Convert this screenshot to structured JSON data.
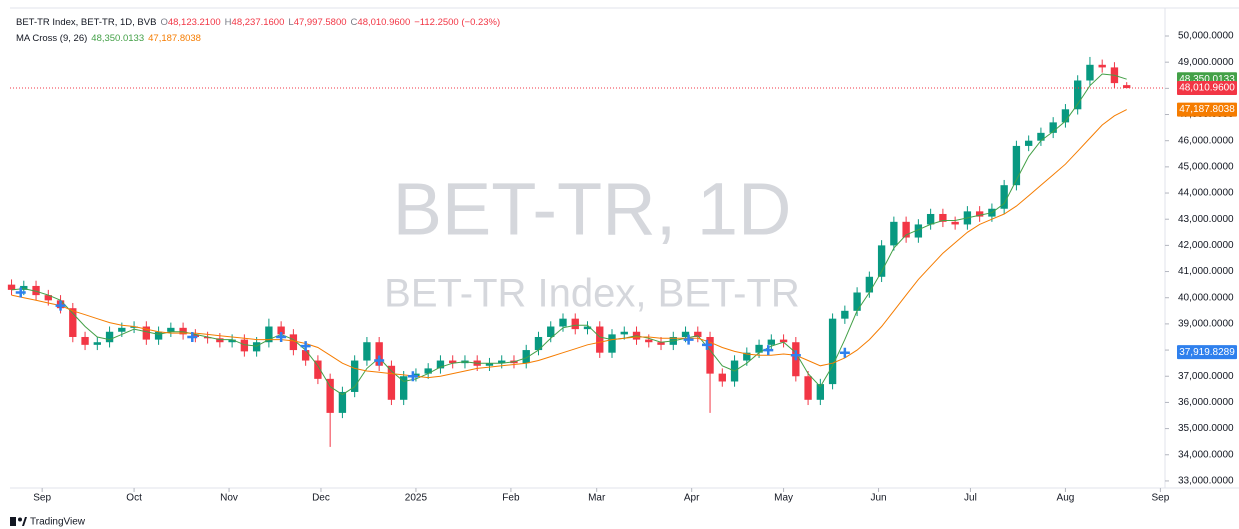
{
  "chart_data": {
    "type": "candlestick",
    "header": {
      "symbol": "BET-TR Index, BET-TR, 1D, BVB",
      "open_key": "O",
      "open": "48,123.2100",
      "high_key": "H",
      "high": "48,237.1600",
      "low_key": "L",
      "low": "47,997.5800",
      "close_key": "C",
      "close": "48,010.9600",
      "change": "−112.2500 (−0.23%)"
    },
    "indicator": "MA Cross (9, 26)",
    "watermark": [
      "BET-TR, 1D",
      "BET-TR Index, BET-TR"
    ],
    "footer": "TradingView",
    "up_color": "#089981",
    "down_color": "#f23645",
    "xlim": [
      -0.5,
      376.5
    ],
    "xticks": [
      {
        "value": 10,
        "label": "Sep"
      },
      {
        "value": 40,
        "label": "Oct"
      },
      {
        "value": 71,
        "label": "Nov"
      },
      {
        "value": 101,
        "label": "Dec"
      },
      {
        "value": 132,
        "label": "2025"
      },
      {
        "value": 163,
        "label": "Feb"
      },
      {
        "value": 191,
        "label": "Mar"
      },
      {
        "value": 222,
        "label": "Apr"
      },
      {
        "value": 252,
        "label": "May"
      },
      {
        "value": 283,
        "label": "Jun"
      },
      {
        "value": 313,
        "label": "Jul"
      },
      {
        "value": 344,
        "label": "Aug"
      },
      {
        "value": 375,
        "label": "Sep"
      }
    ],
    "ylim": [
      32730,
      51070
    ],
    "yticks": [
      {
        "value": 33000,
        "label": "33,000.0000"
      },
      {
        "value": 34000,
        "label": "34,000.0000"
      },
      {
        "value": 35000,
        "label": "35,000.0000"
      },
      {
        "value": 36000,
        "label": "36,000.0000"
      },
      {
        "value": 37000,
        "label": "37,000.0000"
      },
      {
        "value": 38000,
        "label": "38,000.0000"
      },
      {
        "value": 39000,
        "label": "39,000.0000"
      },
      {
        "value": 40000,
        "label": "40,000.0000"
      },
      {
        "value": 41000,
        "label": "41,000.0000"
      },
      {
        "value": 42000,
        "label": "42,000.0000"
      },
      {
        "value": 43000,
        "label": "43,000.0000"
      },
      {
        "value": 44000,
        "label": "44,000.0000"
      },
      {
        "value": 45000,
        "label": "45,000.0000"
      },
      {
        "value": 46000,
        "label": "46,000.0000"
      },
      {
        "value": 47000,
        "label": "47,000.0000"
      },
      {
        "value": 48000,
        "label": "48,000.0000"
      },
      {
        "value": 49000,
        "label": "49,000.0000"
      },
      {
        "value": 50000,
        "label": "50,000.0000"
      }
    ],
    "grid": false,
    "x": [
      0,
      4,
      8,
      12,
      16,
      20,
      24,
      28,
      32,
      36,
      40,
      44,
      48,
      52,
      56,
      60,
      64,
      68,
      72,
      76,
      80,
      84,
      88,
      92,
      96,
      100,
      104,
      108,
      112,
      116,
      120,
      124,
      128,
      132,
      136,
      140,
      144,
      148,
      152,
      156,
      160,
      164,
      168,
      172,
      176,
      180,
      184,
      188,
      192,
      196,
      200,
      204,
      208,
      212,
      216,
      220,
      224,
      228,
      232,
      236,
      240,
      244,
      248,
      252,
      256,
      260,
      264,
      268,
      272,
      276,
      280,
      284,
      288,
      292,
      296,
      300,
      304,
      308,
      312,
      316,
      320,
      324,
      328,
      332,
      336,
      340,
      344,
      348,
      352,
      356,
      360,
      364
    ],
    "open": [
      40500,
      40300,
      40450,
      40100,
      39900,
      39600,
      38500,
      38200,
      38300,
      38700,
      38850,
      38900,
      38400,
      38700,
      38850,
      38600,
      38500,
      38450,
      38300,
      38400,
      37950,
      38300,
      38900,
      38600,
      38000,
      37600,
      36900,
      35600,
      36400,
      37600,
      38300,
      37400,
      36100,
      37000,
      37100,
      37300,
      37600,
      37500,
      37600,
      37400,
      37500,
      37600,
      37500,
      38000,
      38500,
      38900,
      39200,
      38800,
      38900,
      37900,
      38600,
      38700,
      38400,
      38300,
      38200,
      38500,
      38700,
      38500,
      37100,
      36800,
      37600,
      37900,
      38200,
      38400,
      38300,
      37000,
      36100,
      36700,
      39200,
      39500,
      40200,
      40800,
      42000,
      42900,
      42300,
      42800,
      43200,
      42900,
      42800,
      43300,
      43100,
      43400,
      44300,
      45800,
      46000,
      46300,
      46700,
      47200,
      48300,
      48900,
      48800,
      48123.21
    ],
    "high": [
      40700,
      40650,
      40650,
      40300,
      40100,
      39800,
      38700,
      38500,
      38900,
      39050,
      39100,
      39100,
      38900,
      39050,
      39050,
      38800,
      38700,
      38650,
      38600,
      38600,
      38500,
      39200,
      39100,
      38800,
      38200,
      37800,
      37100,
      36600,
      37800,
      38500,
      38500,
      37600,
      37200,
      37300,
      37500,
      37800,
      37800,
      37800,
      37800,
      37700,
      37800,
      37800,
      38200,
      38700,
      39100,
      39400,
      39400,
      39100,
      39100,
      38800,
      38900,
      38900,
      38600,
      38500,
      38700,
      38900,
      38900,
      38700,
      37300,
      37800,
      38100,
      38400,
      38600,
      38600,
      38500,
      37200,
      36900,
      39400,
      39700,
      40400,
      41000,
      42200,
      43100,
      43100,
      43000,
      43400,
      43400,
      43100,
      43500,
      43500,
      43600,
      44500,
      46000,
      46200,
      46500,
      46900,
      47400,
      48500,
      49200,
      49100,
      49000,
      48237.16
    ],
    "low": [
      40100,
      40100,
      39900,
      39700,
      39400,
      38300,
      38000,
      38000,
      38100,
      38500,
      38650,
      38200,
      38200,
      38500,
      38400,
      38300,
      38250,
      38100,
      38100,
      37750,
      37750,
      38100,
      38400,
      37800,
      37400,
      36700,
      34300,
      35400,
      36200,
      37400,
      37200,
      35900,
      35900,
      36800,
      36900,
      37100,
      37300,
      37300,
      37200,
      37200,
      37300,
      37300,
      37300,
      37800,
      38300,
      38700,
      38600,
      38600,
      37700,
      37700,
      38400,
      38200,
      38100,
      38000,
      38000,
      38300,
      38300,
      35600,
      36600,
      36600,
      37400,
      37700,
      38000,
      38100,
      36800,
      35900,
      35900,
      36500,
      39000,
      39300,
      40000,
      40600,
      41800,
      42100,
      42100,
      42600,
      42700,
      42600,
      42600,
      42900,
      42900,
      43200,
      44100,
      45600,
      45800,
      46100,
      46500,
      47000,
      48100,
      48600,
      48000,
      47997.58
    ],
    "close": [
      40300,
      40450,
      40100,
      39900,
      39600,
      38500,
      38200,
      38300,
      38700,
      38850,
      38900,
      38400,
      38700,
      38850,
      38600,
      38500,
      38450,
      38300,
      38400,
      37950,
      38300,
      38900,
      38600,
      38000,
      37600,
      36900,
      35600,
      36400,
      37600,
      38300,
      37400,
      36100,
      37000,
      37100,
      37300,
      37600,
      37500,
      37600,
      37400,
      37500,
      37600,
      37500,
      38000,
      38500,
      38900,
      39200,
      38800,
      38900,
      37900,
      38600,
      38700,
      38400,
      38300,
      38200,
      38500,
      38700,
      38500,
      37100,
      36800,
      37600,
      37900,
      38200,
      38400,
      38300,
      37000,
      36100,
      36700,
      39200,
      39500,
      40200,
      40800,
      42000,
      42900,
      42300,
      42800,
      43200,
      42900,
      42800,
      43300,
      43100,
      43400,
      44300,
      45800,
      46000,
      46300,
      46700,
      47200,
      48300,
      48900,
      48800,
      48200,
      48010.96
    ],
    "close_label": "48,010.9600",
    "series": [
      {
        "color": "#43a047",
        "value_label": "48,350.0133",
        "values": [
          40300,
          40350,
          40250,
          40100,
          39900,
          39400,
          38900,
          38500,
          38400,
          38600,
          38800,
          38700,
          38600,
          38700,
          38700,
          38600,
          38500,
          38400,
          38400,
          38200,
          38150,
          38400,
          38600,
          38400,
          38000,
          37400,
          36600,
          36300,
          36600,
          37300,
          37700,
          37200,
          36800,
          36900,
          37100,
          37350,
          37500,
          37550,
          37500,
          37500,
          37500,
          37550,
          37700,
          38000,
          38450,
          38850,
          38950,
          38950,
          38500,
          38400,
          38450,
          38550,
          38450,
          38300,
          38350,
          38450,
          38550,
          38000,
          37400,
          37200,
          37500,
          37900,
          38150,
          38300,
          37900,
          37100,
          36600,
          37400,
          38400,
          39500,
          40200,
          41000,
          41900,
          42400,
          42600,
          42800,
          42950,
          42950,
          43050,
          43150,
          43250,
          43600,
          44500,
          45400,
          46000,
          46350,
          46750,
          47400,
          48100,
          48550,
          48500,
          48350.0133
        ]
      },
      {
        "color": "#f57c00",
        "value_label": "47,187.8038",
        "values": [
          40100,
          40000,
          39900,
          39800,
          39700,
          39500,
          39350,
          39200,
          39050,
          38950,
          38900,
          38800,
          38700,
          38650,
          38650,
          38650,
          38600,
          38550,
          38500,
          38450,
          38400,
          38400,
          38400,
          38350,
          38250,
          38100,
          37800,
          37500,
          37300,
          37200,
          37150,
          37100,
          37050,
          37000,
          36950,
          37000,
          37100,
          37200,
          37300,
          37350,
          37400,
          37450,
          37500,
          37600,
          37750,
          37900,
          38050,
          38200,
          38300,
          38400,
          38450,
          38500,
          38500,
          38450,
          38450,
          38450,
          38450,
          38300,
          38100,
          37950,
          37850,
          37800,
          37800,
          37850,
          37800,
          37600,
          37400,
          37500,
          37700,
          38000,
          38400,
          38900,
          39500,
          40100,
          40700,
          41200,
          41700,
          42100,
          42500,
          42800,
          43000,
          43200,
          43500,
          43900,
          44300,
          44700,
          45100,
          45600,
          46100,
          46600,
          46950,
          47187.8038
        ]
      }
    ],
    "crosses": {
      "color": "#2f80ed",
      "x": [
        3,
        16,
        59,
        88,
        96,
        120,
        131,
        221,
        227,
        247,
        256,
        272
      ],
      "values": [
        40200,
        39700,
        38500,
        38500,
        38150,
        37600,
        37000,
        38400,
        38200,
        38000,
        37800,
        37900
      ]
    },
    "price_marker": {
      "value": 37919.8289,
      "label": "37,919.8289",
      "color": "#2f80ed"
    }
  }
}
